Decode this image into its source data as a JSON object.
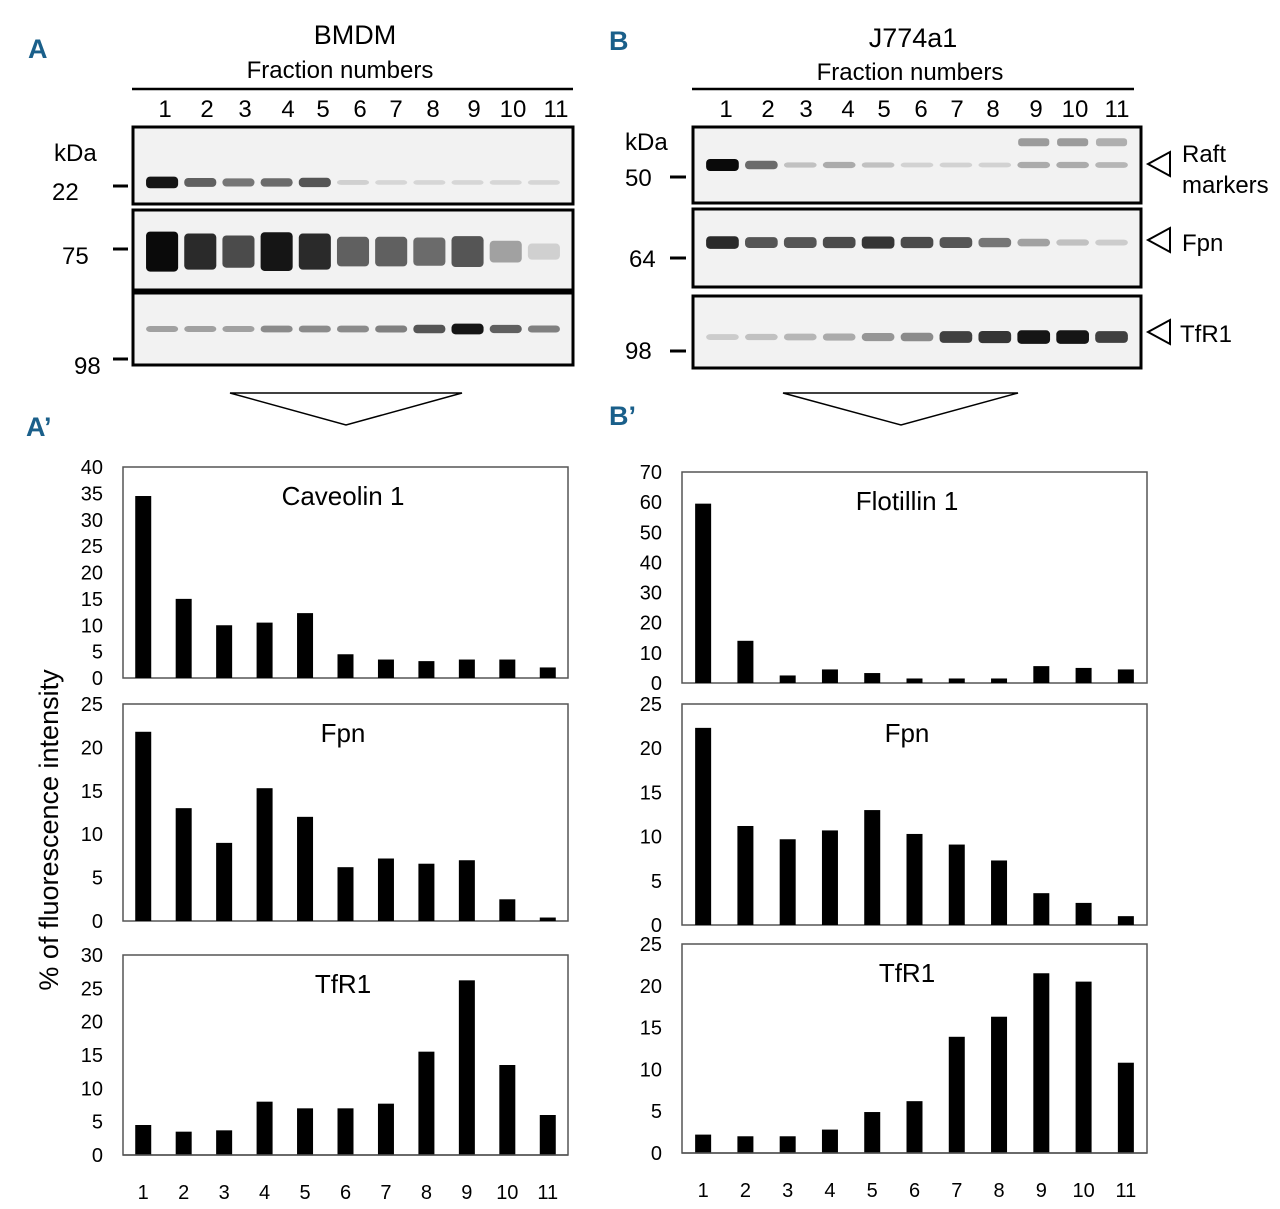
{
  "panels": {
    "A": "A",
    "B": "B",
    "Ap": "A’",
    "Bp": "B’"
  },
  "blots": {
    "left": {
      "title": "BMDM",
      "subtitle": "Fraction numbers",
      "kda_label": "kDa",
      "markers": [
        "22",
        "75",
        "98"
      ],
      "lane_intensity": [
        [
          0.95,
          0.6,
          0.5,
          0.55,
          0.65,
          0.08,
          0.05,
          0.05,
          0.05,
          0.05,
          0.05
        ],
        [
          1.0,
          0.85,
          0.7,
          0.95,
          0.85,
          0.6,
          0.6,
          0.55,
          0.65,
          0.3,
          0.08
        ],
        [
          0.3,
          0.3,
          0.3,
          0.4,
          0.4,
          0.4,
          0.45,
          0.65,
          0.95,
          0.6,
          0.45
        ]
      ]
    },
    "right": {
      "title": "J774a1",
      "subtitle": "Fraction numbers",
      "kda_label": "kDa",
      "markers": [
        "50",
        "64",
        "98"
      ],
      "band_labels": [
        "Raft",
        "markers",
        "Fpn",
        "TfR1"
      ],
      "lane_intensity": [
        [
          1.0,
          0.55,
          0.15,
          0.25,
          0.15,
          0.07,
          0.07,
          0.07,
          0.25,
          0.25,
          0.2
        ],
        [
          0.85,
          0.65,
          0.65,
          0.7,
          0.8,
          0.7,
          0.65,
          0.5,
          0.3,
          0.15,
          0.1
        ],
        [
          0.1,
          0.15,
          0.2,
          0.25,
          0.35,
          0.4,
          0.75,
          0.8,
          0.95,
          0.95,
          0.75
        ]
      ]
    },
    "fractions": [
      "1",
      "2",
      "3",
      "4",
      "5",
      "6",
      "7",
      "8",
      "9",
      "10",
      "11"
    ]
  },
  "y_axis_label": "% of fluorescence intensity",
  "chart_data": [
    {
      "type": "bar",
      "title": "Caveolin 1",
      "categories": [
        "1",
        "2",
        "3",
        "4",
        "5",
        "6",
        "7",
        "8",
        "9",
        "10",
        "11"
      ],
      "values": [
        34.5,
        15,
        10,
        10.5,
        12.3,
        4.5,
        3.5,
        3.2,
        3.5,
        3.5,
        2
      ],
      "ylim": [
        0,
        40
      ],
      "yticks": [
        "0",
        "5",
        "10",
        "15",
        "20",
        "25",
        "30",
        "35",
        "40"
      ]
    },
    {
      "type": "bar",
      "title": "Fpn",
      "categories": [
        "1",
        "2",
        "3",
        "4",
        "5",
        "6",
        "7",
        "8",
        "9",
        "10",
        "11"
      ],
      "values": [
        21.8,
        13,
        9,
        15.3,
        12,
        6.2,
        7.2,
        6.6,
        7,
        2.5,
        0.4
      ],
      "ylim": [
        0,
        25
      ],
      "yticks": [
        "0",
        "5",
        "10",
        "15",
        "20",
        "25"
      ]
    },
    {
      "type": "bar",
      "title": "TfR1",
      "categories": [
        "1",
        "2",
        "3",
        "4",
        "5",
        "6",
        "7",
        "8",
        "9",
        "10",
        "11"
      ],
      "values": [
        4.5,
        3.5,
        3.7,
        8,
        7,
        7,
        7.7,
        15.5,
        26.2,
        13.5,
        6
      ],
      "ylim": [
        0,
        30
      ],
      "yticks": [
        "0",
        "5",
        "10",
        "15",
        "20",
        "25",
        "30"
      ]
    },
    {
      "type": "bar",
      "title": "Flotillin 1",
      "categories": [
        "1",
        "2",
        "3",
        "4",
        "5",
        "6",
        "7",
        "8",
        "9",
        "10",
        "11"
      ],
      "values": [
        59.5,
        14,
        2.5,
        4.5,
        3.3,
        1.5,
        1.5,
        1.5,
        5.6,
        5,
        4.5
      ],
      "ylim": [
        0,
        70
      ],
      "yticks": [
        "0",
        "10",
        "20",
        "30",
        "40",
        "50",
        "60",
        "70"
      ]
    },
    {
      "type": "bar",
      "title": "Fpn",
      "categories": [
        "1",
        "2",
        "3",
        "4",
        "5",
        "6",
        "7",
        "8",
        "9",
        "10",
        "11"
      ],
      "values": [
        22.3,
        11.2,
        9.7,
        10.7,
        13,
        10.3,
        9.1,
        7.3,
        3.6,
        2.5,
        1
      ],
      "ylim": [
        0,
        25
      ],
      "yticks": [
        "0",
        "5",
        "10",
        "15",
        "20",
        "25"
      ]
    },
    {
      "type": "bar",
      "title": "TfR1",
      "categories": [
        "1",
        "2",
        "3",
        "4",
        "5",
        "6",
        "7",
        "8",
        "9",
        "10",
        "11"
      ],
      "values": [
        2.2,
        2,
        2,
        2.8,
        4.9,
        6.2,
        13.9,
        16.3,
        21.5,
        20.5,
        10.8
      ],
      "ylim": [
        0,
        25
      ],
      "yticks": [
        "0",
        "5",
        "10",
        "15",
        "20",
        "25"
      ]
    }
  ]
}
